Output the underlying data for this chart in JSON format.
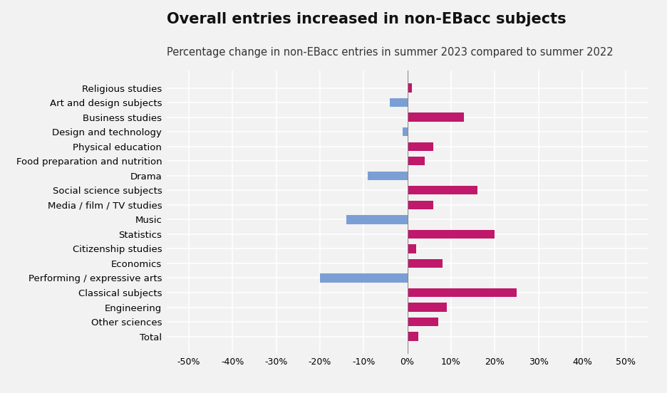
{
  "title": "Overall entries increased in non-EBacc subjects",
  "subtitle": "Percentage change in non-EBacc entries in summer 2023 compared to summer 2022",
  "categories": [
    "Religious studies",
    "Art and design subjects",
    "Business studies",
    "Design and technology",
    "Physical education",
    "Food preparation and nutrition",
    "Drama",
    "Social science subjects",
    "Media / film / TV studies",
    "Music",
    "Statistics",
    "Citizenship studies",
    "Economics",
    "Performing / expressive arts",
    "Classical subjects",
    "Engineering",
    "Other sciences",
    "Total"
  ],
  "values": [
    1.0,
    -4.0,
    13.0,
    -1.0,
    6.0,
    4.0,
    -9.0,
    16.0,
    6.0,
    -14.0,
    20.0,
    2.0,
    8.0,
    -20.0,
    25.0,
    9.0,
    7.0,
    2.5
  ],
  "positive_color": "#c0186a",
  "negative_color": "#7b9fd4",
  "background_color": "#f2f2f2",
  "grid_color": "#ffffff",
  "title_fontsize": 15,
  "subtitle_fontsize": 10.5,
  "tick_fontsize": 9,
  "label_fontsize": 9.5,
  "xlim": [
    -55,
    55
  ],
  "xticks": [
    -50,
    -40,
    -30,
    -20,
    -10,
    0,
    10,
    20,
    30,
    40,
    50
  ],
  "xtick_labels": [
    "-50%",
    "-40%",
    "-30%",
    "-20%",
    "-10%",
    "0%",
    "10%",
    "20%",
    "30%",
    "40%",
    "50%"
  ]
}
